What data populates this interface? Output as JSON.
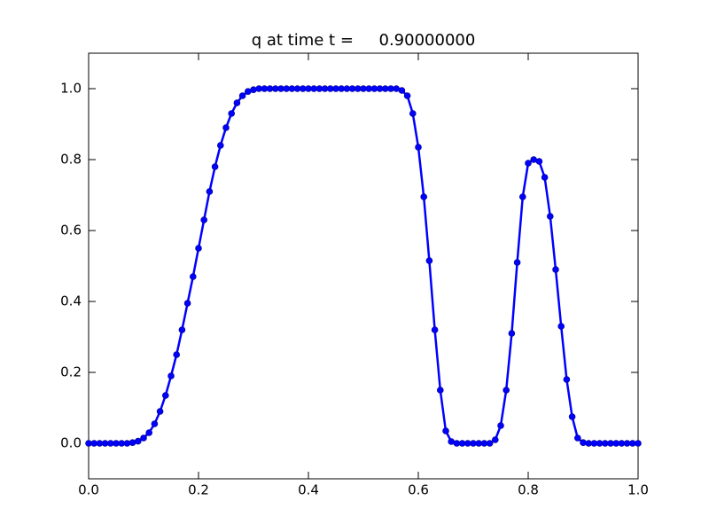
{
  "chart_data": {
    "type": "line",
    "title": "q at time t =     0.90000000",
    "x": [
      0,
      0.01,
      0.02,
      0.03,
      0.04,
      0.05,
      0.06,
      0.07,
      0.08,
      0.09,
      0.1,
      0.11,
      0.12,
      0.13,
      0.14,
      0.15,
      0.16,
      0.17,
      0.18,
      0.19,
      0.2,
      0.21,
      0.22,
      0.23,
      0.24,
      0.25,
      0.26,
      0.27,
      0.28,
      0.29,
      0.3,
      0.31,
      0.32,
      0.33,
      0.34,
      0.35,
      0.36,
      0.37,
      0.38,
      0.39,
      0.4,
      0.41,
      0.42,
      0.43,
      0.44,
      0.45,
      0.46,
      0.47,
      0.48,
      0.49,
      0.5,
      0.51,
      0.52,
      0.53,
      0.54,
      0.55,
      0.56,
      0.57,
      0.58,
      0.59,
      0.6,
      0.61,
      0.62,
      0.63,
      0.64,
      0.65,
      0.66,
      0.67,
      0.68,
      0.69,
      0.7,
      0.71,
      0.72,
      0.73,
      0.74,
      0.75,
      0.76,
      0.77,
      0.78,
      0.79,
      0.8,
      0.81,
      0.82,
      0.83,
      0.84,
      0.85,
      0.86,
      0.87,
      0.88,
      0.89,
      0.9,
      0.91,
      0.92,
      0.93,
      0.94,
      0.95,
      0.96,
      0.97,
      0.98,
      0.99,
      1
    ],
    "series": [
      {
        "color": "#0000ff",
        "values": [
          0,
          0,
          0,
          0,
          0,
          0,
          0,
          0,
          0.002,
          0.006,
          0.015,
          0.03,
          0.055,
          0.09,
          0.135,
          0.19,
          0.25,
          0.32,
          0.395,
          0.47,
          0.55,
          0.63,
          0.71,
          0.78,
          0.84,
          0.89,
          0.93,
          0.96,
          0.98,
          0.992,
          0.997,
          1,
          1,
          1,
          1,
          1,
          1,
          1,
          1,
          1,
          1,
          1,
          1,
          1,
          1,
          1,
          1,
          1,
          1,
          1,
          1,
          1,
          1,
          1,
          1,
          1,
          1,
          0.995,
          0.98,
          0.93,
          0.835,
          0.695,
          0.515,
          0.32,
          0.15,
          0.035,
          0.005,
          0,
          0,
          0,
          0,
          0,
          0,
          0,
          0.01,
          0.05,
          0.15,
          0.31,
          0.51,
          0.695,
          0.79,
          0.8,
          0.795,
          0.75,
          0.64,
          0.49,
          0.33,
          0.18,
          0.075,
          0.015,
          0.002,
          0,
          0,
          0,
          0,
          0,
          0,
          0,
          0,
          0,
          0
        ]
      }
    ],
    "xlim": [
      0,
      1
    ],
    "ylim": [
      -0.1,
      1.1
    ],
    "xticks": [
      {
        "value": 0,
        "label": "0.0"
      },
      0.2,
      0.4,
      0.6,
      0.8,
      {
        "value": 1,
        "label": "1.0"
      }
    ],
    "yticks": [
      {
        "value": 0,
        "label": "0.0"
      },
      0.2,
      0.4,
      0.6,
      0.8,
      {
        "value": 1,
        "label": "1.0"
      }
    ],
    "grid": false
  }
}
